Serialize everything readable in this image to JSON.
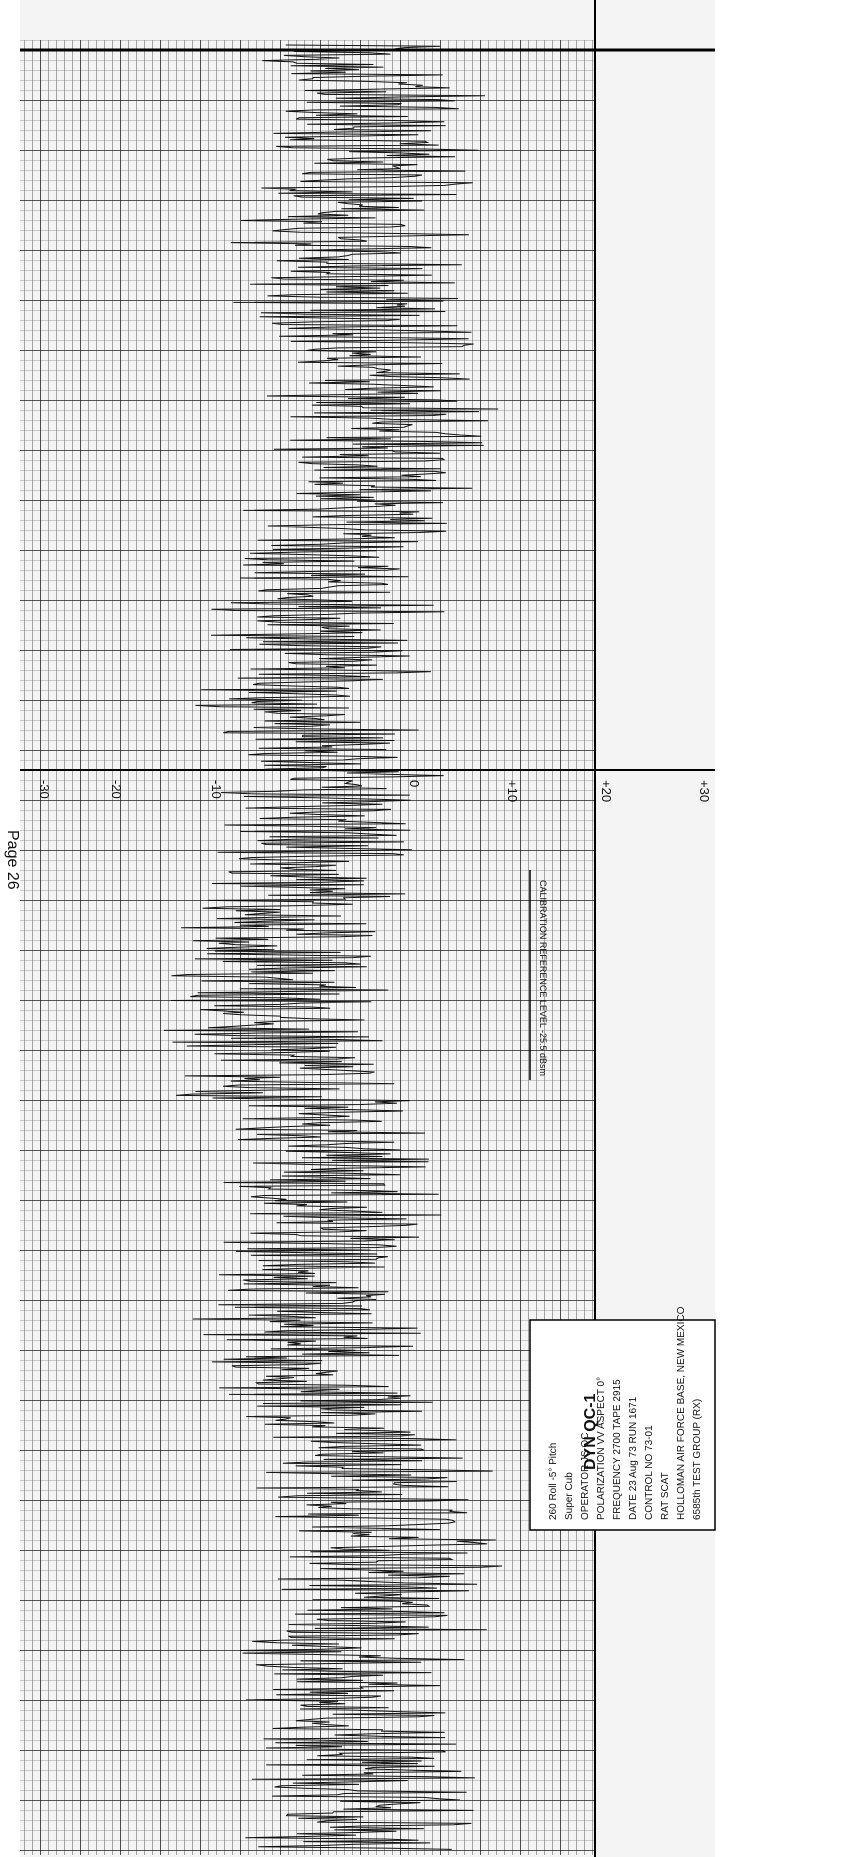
{
  "header": {
    "page": "Page 26"
  },
  "scale_labels": [
    "-30",
    "-20",
    "-10",
    "0",
    "+10",
    "+20",
    "+30"
  ],
  "calibration": "CALIBRATION REFERENCE LEVEL -25.5 dBsm",
  "info_box": {
    "lines": [
      "6585th TEST GROUP (RX)",
      "HOLLOMAN AIR FORCE BASE, NEW MEXICO",
      "RAT SCAT",
      "CONTROL NO 73-01",
      "DATE 23 Aug 73   RUN 1671",
      "FREQUENCY 2700   TAPE 2915",
      "POLARIZATION VV   ASPECT 0°",
      "OPERATOR JS   QC",
      "Super Cub",
      "260 Roll -5° Pitch"
    ],
    "stamp": "DYN QC-1"
  }
}
